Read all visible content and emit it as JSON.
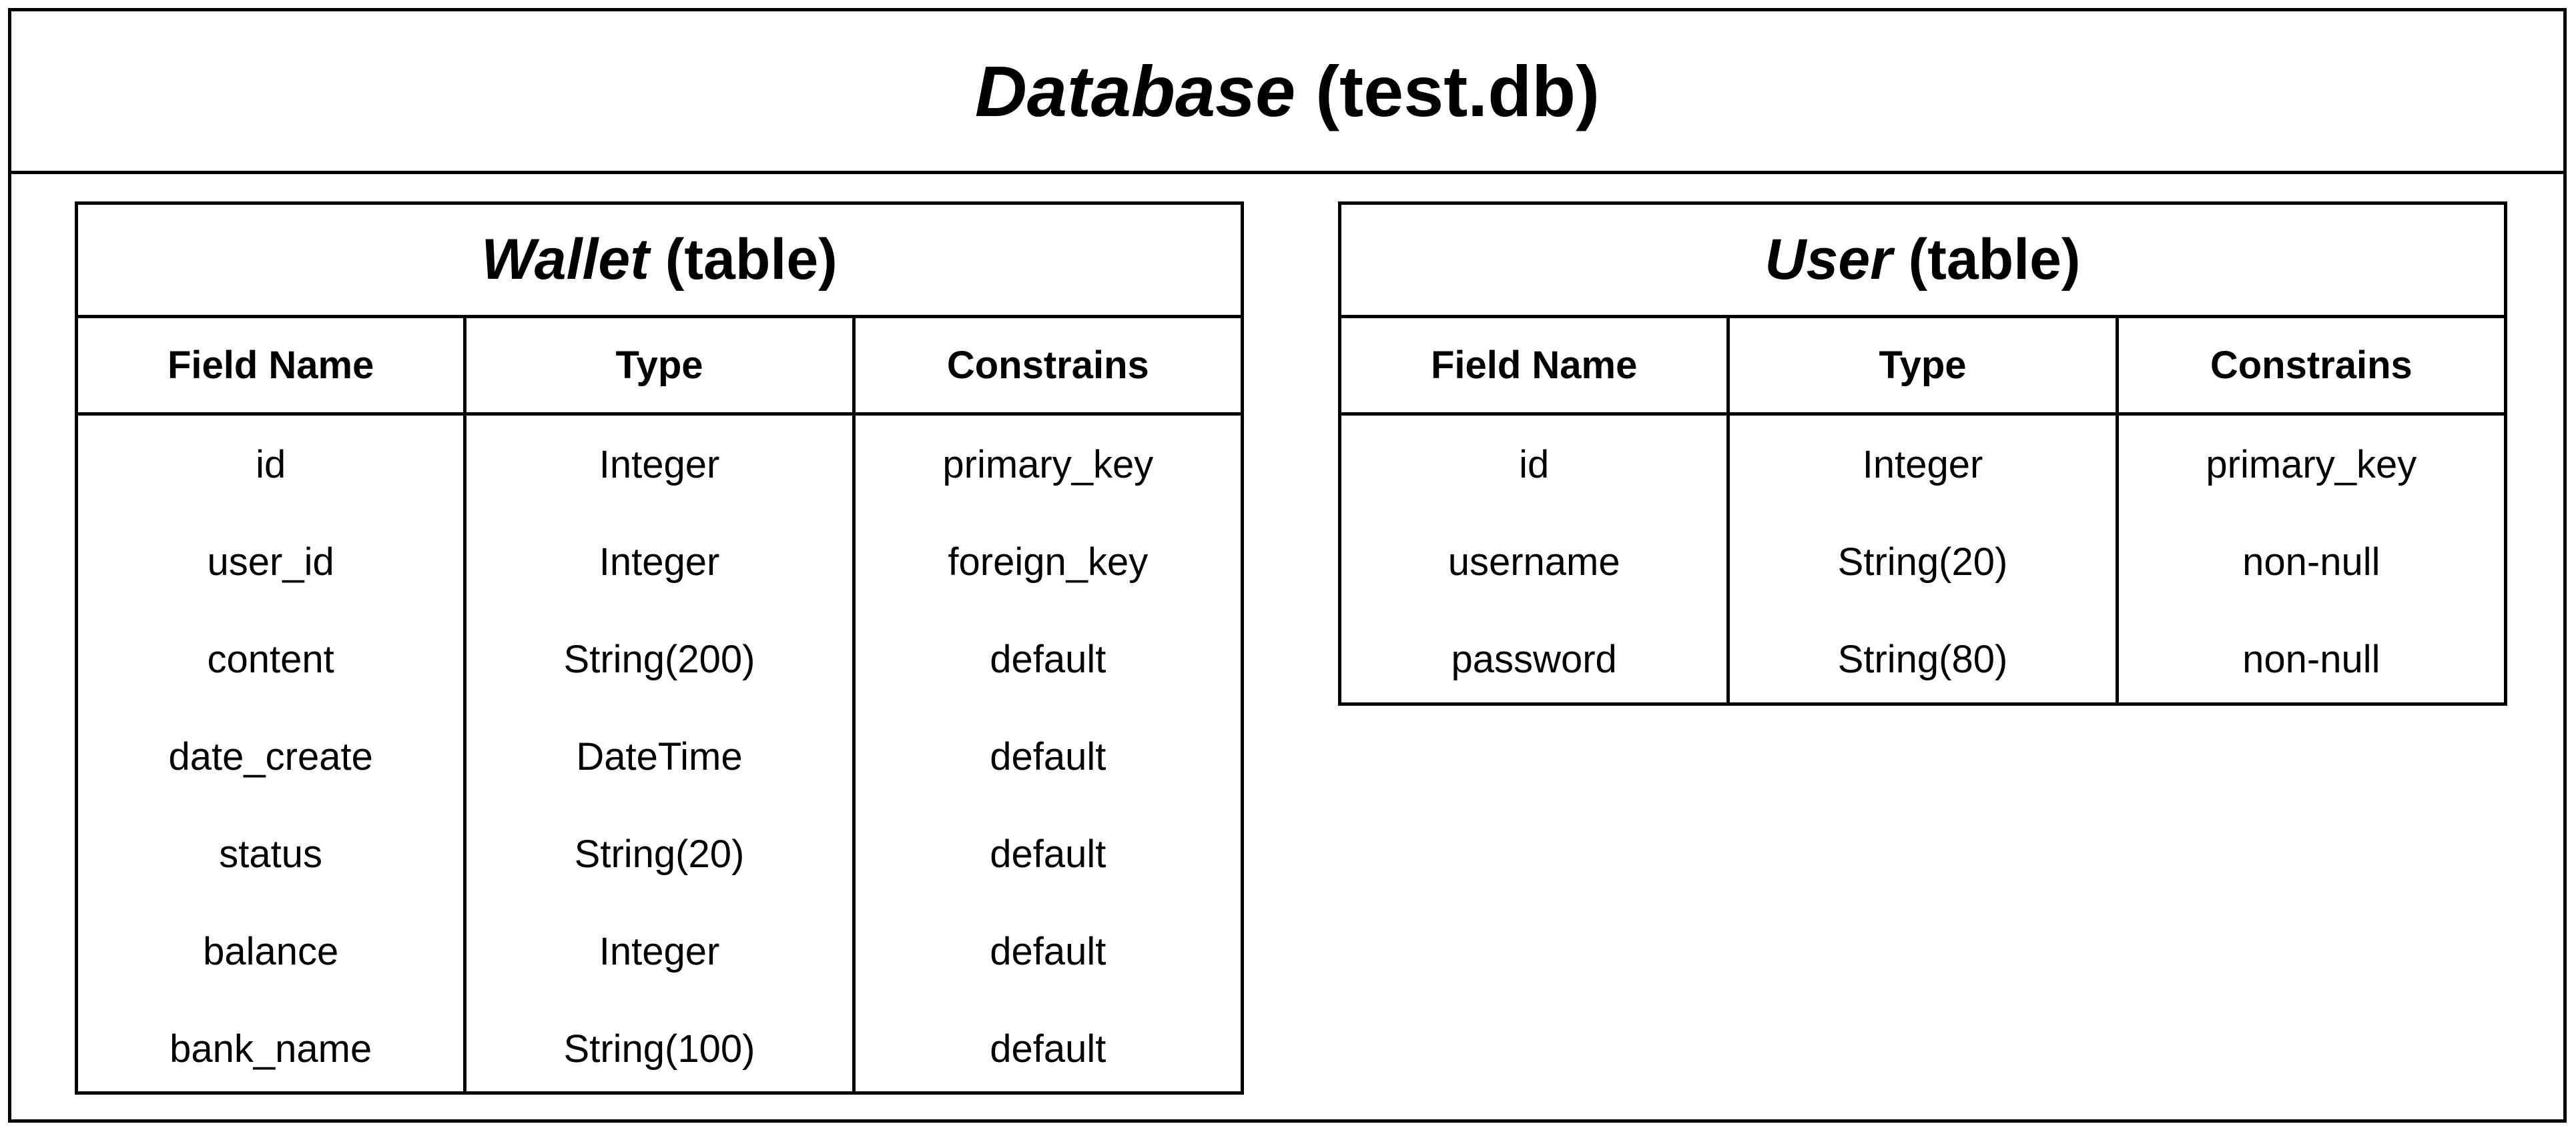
{
  "database": {
    "title_em": "Database",
    "title_rest": " (test.db)"
  },
  "tables": [
    {
      "name_em": "Wallet",
      "name_rest": " (table)",
      "headers": [
        "Field Name",
        "Type",
        "Constrains"
      ],
      "rows": [
        [
          "id",
          "Integer",
          "primary_key"
        ],
        [
          "user_id",
          "Integer",
          "foreign_key"
        ],
        [
          "content",
          "String(200)",
          "default"
        ],
        [
          "date_create",
          "DateTime",
          "default"
        ],
        [
          "status",
          "String(20)",
          "default"
        ],
        [
          "balance",
          "Integer",
          "default"
        ],
        [
          "bank_name",
          "String(100)",
          "default"
        ]
      ]
    },
    {
      "name_em": "User",
      "name_rest": " (table)",
      "headers": [
        "Field Name",
        "Type",
        "Constrains"
      ],
      "rows": [
        [
          "id",
          "Integer",
          "primary_key"
        ],
        [
          "username",
          "String(20)",
          "non-null"
        ],
        [
          "password",
          "String(80)",
          "non-null"
        ]
      ]
    }
  ]
}
